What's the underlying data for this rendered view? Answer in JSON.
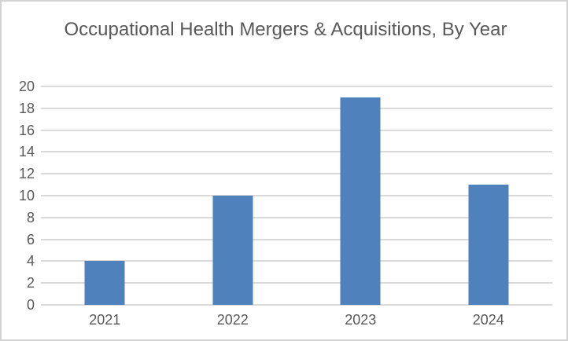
{
  "chart_data": {
    "type": "bar",
    "title": "Occupational Health Mergers & Acquisitions, By Year",
    "categories": [
      "2021",
      "2022",
      "2023",
      "2024"
    ],
    "values": [
      4,
      10,
      19,
      11
    ],
    "xlabel": "",
    "ylabel": "",
    "ylim": [
      0,
      20
    ],
    "ytick_step": 2,
    "ytick_labels": [
      "0",
      "2",
      "4",
      "6",
      "8",
      "10",
      "12",
      "14",
      "16",
      "18",
      "20"
    ],
    "grid": true,
    "legend_position": "none",
    "colors": {
      "bar": "#4f81bd",
      "gridline": "#d9d9d9",
      "axis_line": "#d9d9d9",
      "text": "#595959",
      "background": "#ffffff",
      "frame_border": "#d3d3d3"
    }
  }
}
